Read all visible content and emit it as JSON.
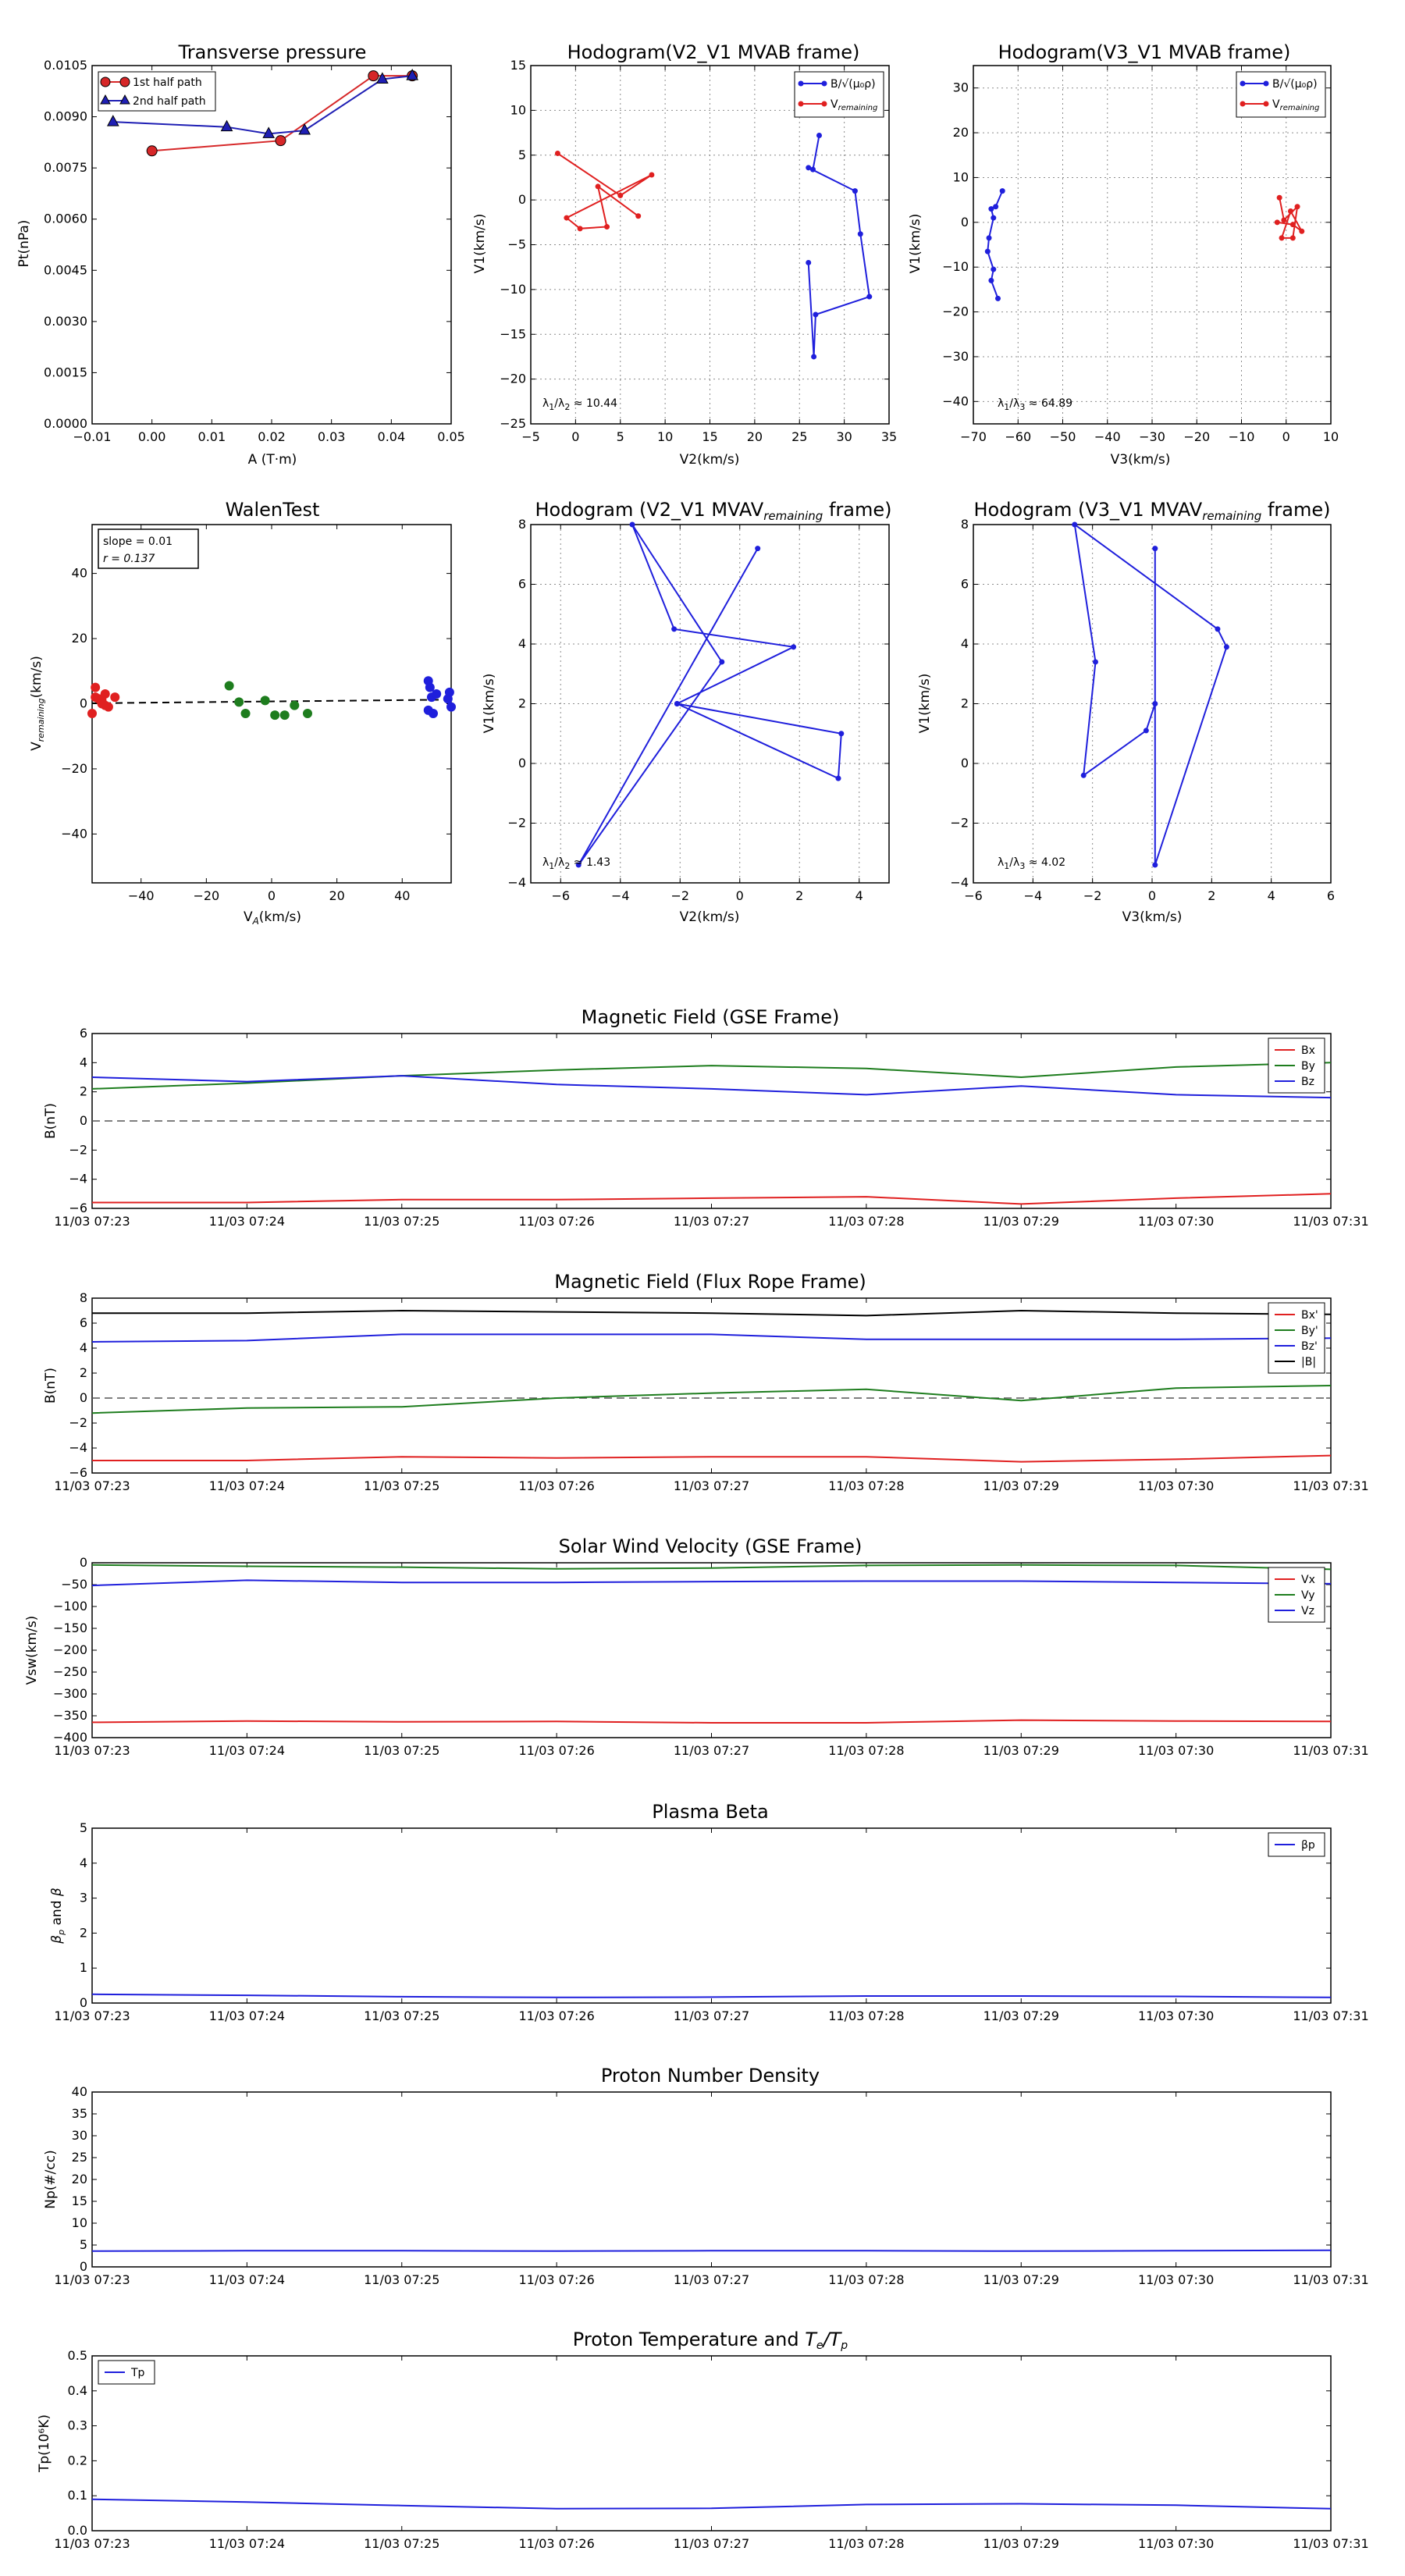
{
  "chart_data": [
    {
      "id": "tp",
      "type": "line",
      "title": "Transverse pressure",
      "xlabel": "A (T·m)",
      "ylabel": "Pt(nPa)",
      "xlim": [
        -0.01,
        0.05
      ],
      "ylim": [
        0,
        0.0105
      ],
      "xticks": [
        -0.01,
        0,
        0.01,
        0.02,
        0.03,
        0.04,
        0.05
      ],
      "xticklabels": [
        "−0.01",
        "0.00",
        "0.01",
        "0.02",
        "0.03",
        "0.04",
        "0.05"
      ],
      "yticks": [
        0,
        0.0015,
        0.003,
        0.0045,
        0.006,
        0.0075,
        0.009,
        0.0105
      ],
      "yticklabels": [
        "0.0000",
        "0.0015",
        "0.0030",
        "0.0045",
        "0.0060",
        "0.0075",
        "0.0090",
        "0.0105"
      ],
      "grid": false,
      "legend": "top-left",
      "series": [
        {
          "name": "1st half path",
          "color": "#d62728",
          "marker": "circle",
          "x": [
            0.0,
            0.0215,
            0.037,
            0.0435
          ],
          "y": [
            0.008,
            0.0083,
            0.0102,
            0.0102
          ]
        },
        {
          "name": "2nd half path",
          "color": "#1f1fb4",
          "marker": "triangle",
          "x": [
            -0.0065,
            0.0125,
            0.0195,
            0.0255,
            0.0385,
            0.0435
          ],
          "y": [
            0.00885,
            0.0087,
            0.0085,
            0.0086,
            0.0101,
            0.0102
          ]
        }
      ]
    },
    {
      "id": "hodo1",
      "type": "line",
      "title": "Hodogram(V2_V1 MVAB frame)",
      "xlabel": "V2(km/s)",
      "ylabel": "V1(km/s)",
      "xlim": [
        -5,
        35
      ],
      "ylim": [
        -25,
        15
      ],
      "xticks": [
        -5,
        0,
        5,
        10,
        15,
        20,
        25,
        30,
        35
      ],
      "xticklabels": [
        "−5",
        "0",
        "5",
        "10",
        "15",
        "20",
        "25",
        "30",
        "35"
      ],
      "yticks": [
        -25,
        -20,
        -15,
        -10,
        -5,
        0,
        5,
        10,
        15
      ],
      "yticklabels": [
        "−25",
        "−20",
        "−15",
        "−10",
        "−5",
        "0",
        "5",
        "10",
        "15"
      ],
      "grid": true,
      "legend": "top-right",
      "annotation": "λ₁/λ₂ ≈ 10.44",
      "series": [
        {
          "name": "B/√(μ₀ρ)",
          "color": "#1f1fdc",
          "marker": "dot",
          "x": [
            27.2,
            26.5,
            26.0,
            31.2,
            31.8,
            32.8,
            26.8,
            26.6,
            26.0
          ],
          "y": [
            7.2,
            3.4,
            3.6,
            1.0,
            -3.8,
            -10.8,
            -12.8,
            -17.5,
            -7.0
          ]
        },
        {
          "name": "V_remaining",
          "color": "#e02020",
          "marker": "dot",
          "x": [
            -2.0,
            5.0,
            8.5,
            -1.0,
            0.5,
            3.5,
            2.5,
            7.0
          ],
          "y": [
            5.2,
            0.5,
            2.8,
            -2.0,
            -3.2,
            -3.0,
            1.5,
            -1.8
          ]
        }
      ]
    },
    {
      "id": "hodo2",
      "type": "line",
      "title": "Hodogram(V3_V1 MVAB frame)",
      "xlabel": "V3(km/s)",
      "ylabel": "V1(km/s)",
      "xlim": [
        -70,
        10
      ],
      "ylim": [
        -45,
        35
      ],
      "xticks": [
        -70,
        -60,
        -50,
        -40,
        -30,
        -20,
        -10,
        0,
        10
      ],
      "xticklabels": [
        "−70",
        "−60",
        "−50",
        "−40",
        "−30",
        "−20",
        "−10",
        "0",
        "10"
      ],
      "yticks": [
        -40,
        -30,
        -20,
        -10,
        0,
        10,
        20,
        30
      ],
      "yticklabels": [
        "−40",
        "−30",
        "−20",
        "−10",
        "0",
        "10",
        "20",
        "30"
      ],
      "grid": true,
      "legend": "top-right",
      "annotation": "λ₁/λ₃ ≈ 64.89",
      "series": [
        {
          "name": "B/√(μ₀ρ)",
          "color": "#1f1fdc",
          "marker": "dot",
          "x": [
            -63.5,
            -65.0,
            -66.0,
            -65.5,
            -66.5,
            -66.8,
            -65.5,
            -66.0,
            -64.5
          ],
          "y": [
            7.0,
            3.5,
            3.0,
            1.0,
            -3.5,
            -6.5,
            -10.5,
            -13.0,
            -17.0
          ]
        },
        {
          "name": "V_remaining",
          "color": "#e02020",
          "marker": "dot",
          "x": [
            -1.5,
            -0.5,
            2.5,
            1.5,
            -1.0,
            1.0,
            3.5,
            1.5,
            -2.0
          ],
          "y": [
            5.5,
            0.5,
            3.5,
            -3.5,
            -3.5,
            2.5,
            -2.0,
            -0.5,
            0.0
          ]
        }
      ]
    },
    {
      "id": "walen",
      "type": "scatter",
      "title": "WalenTest",
      "xlabel": "V_A(km/s)",
      "ylabel": "V_remaining(km/s)",
      "xlim": [
        -55,
        55
      ],
      "ylim": [
        -55,
        55
      ],
      "xticks": [
        -40,
        -20,
        0,
        20,
        40
      ],
      "xticklabels": [
        "−40",
        "−20",
        "0",
        "20",
        "40"
      ],
      "yticks": [
        -40,
        -20,
        0,
        20,
        40
      ],
      "yticklabels": [
        "−40",
        "−20",
        "0",
        "20",
        "40"
      ],
      "grid": false,
      "annotation_lines": [
        "slope = 0.01",
        "r = 0.137"
      ],
      "fit": {
        "slope": 0.01,
        "intercept": 0.7,
        "color": "#000000",
        "dashed": true
      },
      "series": [
        {
          "color": "#e02020",
          "x": [
            -54,
            -51,
            -53,
            -52,
            -50,
            -55,
            -54,
            -51,
            -52,
            -48
          ],
          "y": [
            5,
            3,
            1.5,
            0,
            -1,
            -3,
            2,
            -0.5,
            1,
            2
          ]
        },
        {
          "color": "#1e7d1e",
          "x": [
            -13,
            -10,
            -8,
            -2,
            1,
            4,
            7,
            11
          ],
          "y": [
            5.5,
            0.5,
            -3.0,
            1.0,
            -3.5,
            -3.5,
            -0.5,
            -3.0
          ]
        },
        {
          "color": "#1f1fdc",
          "x": [
            48,
            48.5,
            49,
            48,
            49.5,
            50.5,
            54,
            55,
            54.5
          ],
          "y": [
            7,
            5,
            2,
            -2,
            -3,
            3,
            1.5,
            -1,
            3.5
          ]
        }
      ]
    },
    {
      "id": "hodo3",
      "type": "line",
      "title": "Hodogram (V2_V1 MVAV_remaining frame)",
      "xlabel": "V2(km/s)",
      "ylabel": "V1(km/s)",
      "xlim": [
        -7,
        5
      ],
      "ylim": [
        -4,
        8
      ],
      "xticks": [
        -6,
        -4,
        -2,
        0,
        2,
        4
      ],
      "xticklabels": [
        "−6",
        "−4",
        "−2",
        "0",
        "2",
        "4"
      ],
      "yticks": [
        -4,
        -2,
        0,
        2,
        4,
        6,
        8
      ],
      "yticklabels": [
        "−4",
        "−2",
        "0",
        "2",
        "4",
        "6",
        "8"
      ],
      "grid": true,
      "annotation": "λ₁/λ₂ ≈ 1.43",
      "series": [
        {
          "color": "#1f1fdc",
          "marker": "dot",
          "x": [
            0.6,
            -5.4,
            -0.6,
            -3.6,
            -2.2,
            1.8,
            -2.1,
            3.4,
            3.3,
            -2.1
          ],
          "y": [
            7.2,
            -3.4,
            3.4,
            8.0,
            4.5,
            3.9,
            2.0,
            1.0,
            -0.5,
            2.0
          ]
        }
      ]
    },
    {
      "id": "hodo4",
      "type": "line",
      "title": "Hodogram (V3_V1 MVAV_remaining frame)",
      "xlabel": "V3(km/s)",
      "ylabel": "V1(km/s)",
      "xlim": [
        -6,
        6
      ],
      "ylim": [
        -4,
        8
      ],
      "xticks": [
        -6,
        -4,
        -2,
        0,
        2,
        4,
        6
      ],
      "xticklabels": [
        "−6",
        "−4",
        "−2",
        "0",
        "2",
        "4",
        "6"
      ],
      "yticks": [
        -4,
        -2,
        0,
        2,
        4,
        6,
        8
      ],
      "yticklabels": [
        "−4",
        "−2",
        "0",
        "2",
        "4",
        "6",
        "8"
      ],
      "grid": true,
      "annotation": "λ₁/λ₃ ≈ 4.02",
      "series": [
        {
          "color": "#1f1fdc",
          "marker": "dot",
          "x": [
            0.1,
            0.1,
            2.5,
            2.2,
            -2.6,
            -1.9,
            -2.3,
            -0.2,
            0.1
          ],
          "y": [
            7.2,
            -3.4,
            3.9,
            4.5,
            8.0,
            3.4,
            -0.4,
            1.1,
            2.0
          ]
        }
      ]
    },
    {
      "id": "bgse",
      "type": "line",
      "title": "Magnetic Field (GSE Frame)",
      "xlabel": "",
      "ylabel": "B(nT)",
      "ylim": [
        -6,
        6
      ],
      "yticks": [
        -6,
        -4,
        -2,
        0,
        2,
        4,
        6
      ],
      "yticklabels": [
        "−6",
        "−4",
        "−2",
        "0",
        "2",
        "4",
        "6"
      ],
      "zero_line": true,
      "legend": "top-right",
      "x": [
        "11/03 07:23",
        "11/03 07:24",
        "11/03 07:25",
        "11/03 07:26",
        "11/03 07:27",
        "11/03 07:28",
        "11/03 07:29",
        "11/03 07:30",
        "11/03 07:31"
      ],
      "series": [
        {
          "name": "Bx",
          "color": "#e02020",
          "values": [
            -5.6,
            -5.6,
            -5.4,
            -5.4,
            -5.3,
            -5.2,
            -5.7,
            -5.3,
            -5.0
          ]
        },
        {
          "name": "By",
          "color": "#1e7d1e",
          "values": [
            2.2,
            2.6,
            3.1,
            3.5,
            3.8,
            3.6,
            3.0,
            3.7,
            4.0
          ]
        },
        {
          "name": "Bz",
          "color": "#1f1fdc",
          "values": [
            3.0,
            2.7,
            3.1,
            2.5,
            2.2,
            1.8,
            2.4,
            1.8,
            1.6
          ]
        }
      ]
    },
    {
      "id": "bfr",
      "type": "line",
      "title": "Magnetic Field (Flux Rope Frame)",
      "xlabel": "",
      "ylabel": "B(nT)",
      "ylim": [
        -6,
        8
      ],
      "yticks": [
        -6,
        -4,
        -2,
        0,
        2,
        4,
        6,
        8
      ],
      "yticklabels": [
        "−6",
        "−4",
        "−2",
        "0",
        "2",
        "4",
        "6",
        "8"
      ],
      "zero_line": true,
      "legend": "top-right",
      "x": [
        "11/03 07:23",
        "11/03 07:24",
        "11/03 07:25",
        "11/03 07:26",
        "11/03 07:27",
        "11/03 07:28",
        "11/03 07:29",
        "11/03 07:30",
        "11/03 07:31"
      ],
      "series": [
        {
          "name": "Bx'",
          "color": "#e02020",
          "values": [
            -5.0,
            -5.0,
            -4.7,
            -4.8,
            -4.7,
            -4.7,
            -5.1,
            -4.9,
            -4.6
          ]
        },
        {
          "name": "By'",
          "color": "#1e7d1e",
          "values": [
            -1.2,
            -0.8,
            -0.7,
            0.0,
            0.4,
            0.7,
            -0.2,
            0.8,
            1.0
          ]
        },
        {
          "name": "Bz'",
          "color": "#1f1fdc",
          "values": [
            4.5,
            4.6,
            5.1,
            5.1,
            5.1,
            4.7,
            4.7,
            4.7,
            4.8
          ]
        },
        {
          "name": "|B|",
          "color": "#000000",
          "values": [
            6.8,
            6.8,
            7.0,
            6.9,
            6.8,
            6.6,
            7.0,
            6.8,
            6.7
          ]
        }
      ]
    },
    {
      "id": "vsw",
      "type": "line",
      "title": "Solar Wind Velocity (GSE Frame)",
      "xlabel": "",
      "ylabel": "Vsw(km/s)",
      "ylim": [
        -400,
        0
      ],
      "yticks": [
        -400,
        -350,
        -300,
        -250,
        -200,
        -150,
        -100,
        -50,
        0
      ],
      "yticklabels": [
        "−400",
        "−350",
        "−300",
        "−250",
        "−200",
        "−150",
        "−100",
        "−50",
        "0"
      ],
      "legend": "top-right",
      "x": [
        "11/03 07:23",
        "11/03 07:24",
        "11/03 07:25",
        "11/03 07:26",
        "11/03 07:27",
        "11/03 07:28",
        "11/03 07:29",
        "11/03 07:30",
        "11/03 07:31"
      ],
      "series": [
        {
          "name": "Vx",
          "color": "#e02020",
          "values": [
            -365,
            -362,
            -364,
            -363,
            -366,
            -366,
            -360,
            -362,
            -363
          ]
        },
        {
          "name": "Vy",
          "color": "#1e7d1e",
          "values": [
            -5,
            -8,
            -10,
            -14,
            -12,
            -6,
            -5,
            -6,
            -15
          ]
        },
        {
          "name": "Vz",
          "color": "#1f1fdc",
          "values": [
            -52,
            -40,
            -45,
            -45,
            -43,
            -42,
            -42,
            -45,
            -48
          ]
        }
      ]
    },
    {
      "id": "beta",
      "type": "line",
      "title": "Plasma Beta",
      "xlabel": "",
      "ylabel": "βp and β",
      "ylim": [
        0,
        5
      ],
      "yticks": [
        0,
        1,
        2,
        3,
        4,
        5
      ],
      "yticklabels": [
        "0",
        "1",
        "2",
        "3",
        "4",
        "5"
      ],
      "legend": "top-right",
      "x": [
        "11/03 07:23",
        "11/03 07:24",
        "11/03 07:25",
        "11/03 07:26",
        "11/03 07:27",
        "11/03 07:28",
        "11/03 07:29",
        "11/03 07:30",
        "11/03 07:31"
      ],
      "series": [
        {
          "name": "βp",
          "color": "#1f1fdc",
          "values": [
            0.25,
            0.22,
            0.18,
            0.16,
            0.17,
            0.2,
            0.2,
            0.19,
            0.16
          ]
        }
      ]
    },
    {
      "id": "np",
      "type": "line",
      "title": "Proton Number Density",
      "xlabel": "",
      "ylabel": "Np(#/cc)",
      "ylim": [
        0,
        40
      ],
      "yticks": [
        0,
        5,
        10,
        15,
        20,
        25,
        30,
        35,
        40
      ],
      "yticklabels": [
        "0",
        "5",
        "10",
        "15",
        "20",
        "25",
        "30",
        "35",
        "40"
      ],
      "x": [
        "11/03 07:23",
        "11/03 07:24",
        "11/03 07:25",
        "11/03 07:26",
        "11/03 07:27",
        "11/03 07:28",
        "11/03 07:29",
        "11/03 07:30",
        "11/03 07:31"
      ],
      "series": [
        {
          "color": "#1f1fdc",
          "values": [
            3.6,
            3.7,
            3.7,
            3.6,
            3.7,
            3.7,
            3.6,
            3.7,
            3.8
          ]
        }
      ]
    },
    {
      "id": "tp2",
      "type": "line",
      "title": "Proton Temperature and Te/Tp",
      "xlabel": "",
      "ylabel": "Tp(10⁶K)",
      "ylim": [
        0,
        0.5
      ],
      "yticks": [
        0,
        0.1,
        0.2,
        0.3,
        0.4,
        0.5
      ],
      "yticklabels": [
        "0.0",
        "0.1",
        "0.2",
        "0.3",
        "0.4",
        "0.5"
      ],
      "legend": "top-left",
      "x": [
        "11/03 07:23",
        "11/03 07:24",
        "11/03 07:25",
        "11/03 07:26",
        "11/03 07:27",
        "11/03 07:28",
        "11/03 07:29",
        "11/03 07:30",
        "11/03 07:31"
      ],
      "series": [
        {
          "name": "Tp",
          "color": "#1f1fdc",
          "values": [
            0.09,
            0.082,
            0.072,
            0.063,
            0.064,
            0.075,
            0.077,
            0.073,
            0.063
          ]
        }
      ]
    }
  ]
}
